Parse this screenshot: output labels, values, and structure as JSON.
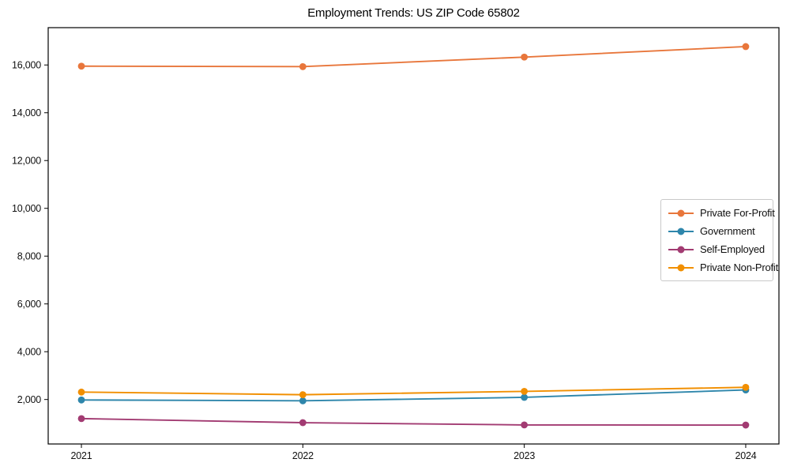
{
  "chart_data": {
    "type": "line",
    "title": "Employment Trends: US ZIP Code 65802",
    "x": [
      2021,
      2022,
      2023,
      2024
    ],
    "x_tick_labels": [
      "2021",
      "2022",
      "2023",
      "2024"
    ],
    "y_ticks": [
      2000,
      4000,
      6000,
      8000,
      10000,
      12000,
      14000,
      16000
    ],
    "y_tick_labels": [
      "2,000",
      "4,000",
      "6,000",
      "8,000",
      "10,000",
      "12,000",
      "14,000",
      "16,000"
    ],
    "xlim": [
      2020.85,
      2024.15
    ],
    "ylim": [
      138,
      17562
    ],
    "grid": false,
    "legend_position": "center-right",
    "series": [
      {
        "name": "Private For-Profit",
        "color": "#E8763B",
        "values": [
          15950,
          15930,
          16330,
          16770
        ]
      },
      {
        "name": "Government",
        "color": "#2E86AB",
        "values": [
          1980,
          1945,
          2090,
          2400
        ]
      },
      {
        "name": "Self-Employed",
        "color": "#A23B72",
        "values": [
          1200,
          1030,
          935,
          930
        ]
      },
      {
        "name": "Private Non-Profit",
        "color": "#F18F01",
        "values": [
          2310,
          2200,
          2340,
          2510
        ]
      }
    ]
  }
}
